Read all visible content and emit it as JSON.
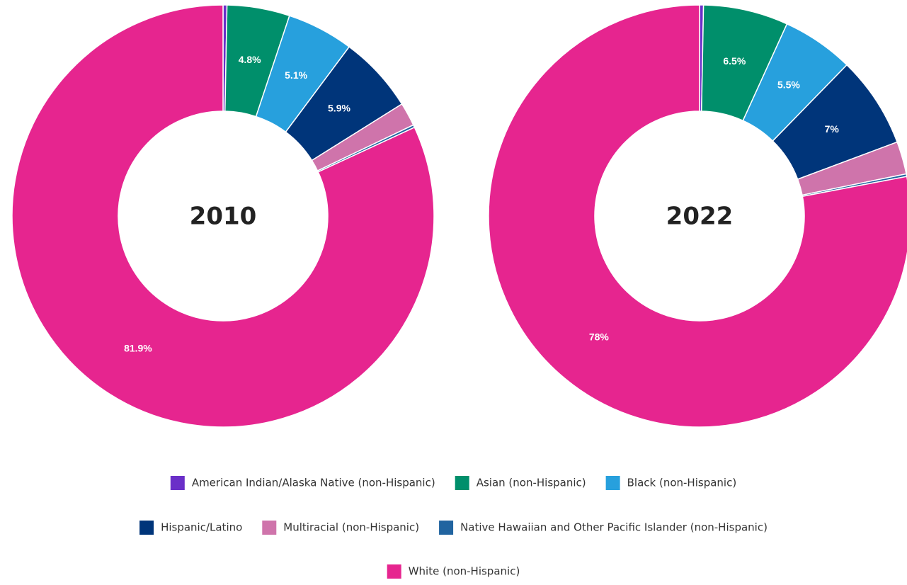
{
  "chart_data": [
    {
      "type": "donut",
      "title": "2010",
      "categories": [
        "American Indian/Alaska Native (non-Hispanic)",
        "Asian (non-Hispanic)",
        "Black (non-Hispanic)",
        "Hispanic/Latino",
        "Multiracial (non-Hispanic)",
        "Native Hawaiian and Other Pacific Islander (non-Hispanic)",
        "White (non-Hispanic)"
      ],
      "values": [
        0.3,
        4.8,
        5.1,
        5.9,
        1.8,
        0.2,
        81.9
      ],
      "value_labels": [
        null,
        "4.8%",
        "5.1%",
        "5.9%",
        null,
        null,
        "81.9%"
      ],
      "colors": [
        "#6a2fc8",
        "#008f6b",
        "#27a0dd",
        "#00357a",
        "#cf74ab",
        "#2164a0",
        "#e6258f"
      ]
    },
    {
      "type": "donut",
      "title": "2022",
      "categories": [
        "American Indian/Alaska Native (non-Hispanic)",
        "Asian (non-Hispanic)",
        "Black (non-Hispanic)",
        "Hispanic/Latino",
        "Multiracial (non-Hispanic)",
        "Native Hawaiian and Other Pacific Islander (non-Hispanic)",
        "White (non-Hispanic)"
      ],
      "values": [
        0.3,
        6.5,
        5.5,
        7,
        2.5,
        0.2,
        78
      ],
      "value_labels": [
        null,
        "6.5%",
        "5.5%",
        "7%",
        null,
        null,
        "78%"
      ],
      "colors": [
        "#6a2fc8",
        "#008f6b",
        "#27a0dd",
        "#00357a",
        "#cf74ab",
        "#2164a0",
        "#e6258f"
      ]
    }
  ]
}
